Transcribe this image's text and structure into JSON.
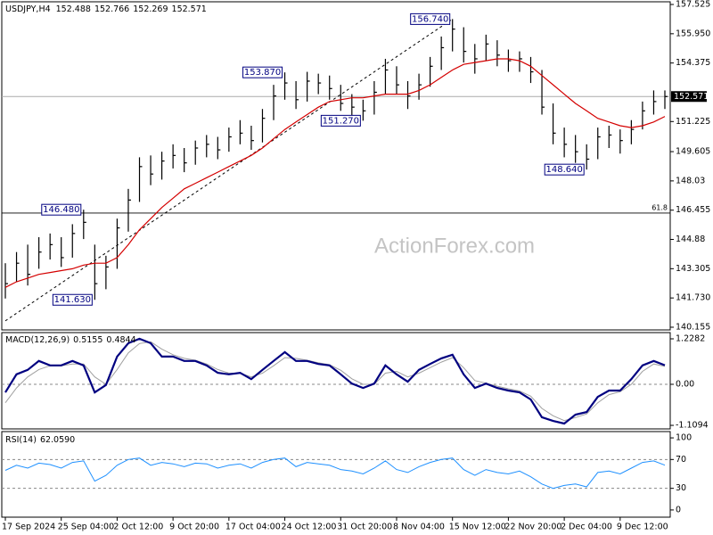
{
  "chart_data": [
    {
      "type": "ohlc",
      "title": "USDJPY,H4",
      "quote": [
        152.488,
        152.766,
        152.269
      ],
      "watermark": "ActionForex.com",
      "categories": [
        "17 Sep 2024",
        null,
        null,
        null,
        null,
        "25 Sep 04:00",
        null,
        null,
        null,
        null,
        "2 Oct 12:00",
        null,
        null,
        null,
        null,
        "9 Oct 20:00",
        null,
        null,
        null,
        null,
        "17 Oct 04:00",
        null,
        null,
        null,
        null,
        "24 Oct 12:00",
        null,
        null,
        null,
        null,
        "31 Oct 20:00",
        null,
        null,
        null,
        null,
        "8 Nov 04:00",
        null,
        null,
        null,
        null,
        "15 Nov 12:00",
        null,
        null,
        null,
        null,
        "22 Nov 20:00",
        null,
        null,
        null,
        null,
        "2 Dec 04:00",
        null,
        null,
        null,
        null,
        "9 Dec 12:00",
        null,
        null,
        null,
        null
      ],
      "high": [
        143.6,
        144.2,
        144.6,
        145.0,
        145.2,
        145.0,
        145.7,
        146.48,
        144.6,
        144.0,
        146.0,
        147.6,
        149.3,
        149.4,
        149.6,
        150.0,
        149.8,
        150.2,
        150.5,
        150.4,
        150.9,
        151.3,
        151.0,
        151.9,
        153.2,
        153.87,
        153.4,
        153.9,
        153.8,
        153.7,
        153.2,
        152.7,
        152.4,
        153.4,
        154.6,
        154.2,
        153.4,
        153.8,
        154.7,
        155.8,
        156.74,
        156.3,
        155.4,
        155.9,
        155.6,
        155.1,
        155.0,
        154.7,
        154.0,
        152.2,
        150.9,
        150.5,
        150.0,
        150.9,
        151.0,
        150.8,
        151.3,
        152.3,
        152.9,
        152.9
      ],
      "low": [
        141.7,
        142.6,
        142.4,
        143.3,
        143.8,
        143.4,
        143.9,
        144.9,
        141.63,
        142.2,
        143.3,
        145.3,
        146.9,
        147.8,
        148.1,
        148.7,
        148.5,
        148.9,
        149.3,
        149.2,
        149.6,
        150.0,
        149.7,
        150.1,
        151.3,
        152.4,
        151.9,
        152.3,
        152.7,
        152.4,
        151.8,
        151.5,
        151.27,
        151.6,
        152.7,
        152.7,
        151.9,
        152.4,
        153.1,
        154.0,
        155.0,
        154.4,
        153.8,
        154.5,
        154.2,
        153.9,
        153.9,
        153.3,
        151.6,
        150.0,
        149.3,
        149.0,
        148.64,
        149.2,
        149.8,
        149.5,
        150.0,
        150.8,
        151.6,
        151.9
      ],
      "close": [
        142.5,
        143.6,
        143.0,
        144.2,
        144.6,
        143.9,
        145.2,
        145.8,
        142.5,
        143.4,
        145.5,
        147.0,
        148.8,
        148.4,
        149.1,
        149.4,
        149.0,
        149.8,
        150.0,
        149.7,
        150.4,
        150.6,
        150.2,
        151.4,
        152.6,
        153.3,
        152.4,
        153.4,
        153.3,
        153.0,
        152.2,
        152.0,
        151.8,
        152.8,
        154.0,
        153.2,
        152.6,
        153.2,
        154.2,
        155.2,
        156.2,
        155.0,
        154.6,
        155.4,
        154.8,
        154.5,
        154.6,
        153.9,
        152.0,
        150.6,
        150.0,
        149.6,
        149.2,
        150.4,
        150.5,
        150.2,
        150.8,
        151.8,
        152.3,
        152.571
      ],
      "color": "#000000",
      "ma": {
        "color": "#d40000",
        "values": [
          142.3,
          142.6,
          142.8,
          143.0,
          143.1,
          143.2,
          143.3,
          143.5,
          143.6,
          143.6,
          143.9,
          144.6,
          145.4,
          146.0,
          146.6,
          147.1,
          147.6,
          147.9,
          148.2,
          148.5,
          148.8,
          149.1,
          149.4,
          149.8,
          150.3,
          150.8,
          151.2,
          151.6,
          152.0,
          152.3,
          152.4,
          152.5,
          152.5,
          152.6,
          152.7,
          152.7,
          152.7,
          152.9,
          153.2,
          153.6,
          154.0,
          154.3,
          154.4,
          154.5,
          154.6,
          154.6,
          154.5,
          154.2,
          153.7,
          153.2,
          152.7,
          152.2,
          151.8,
          151.4,
          151.2,
          151.0,
          150.9,
          151.0,
          151.2,
          151.5
        ]
      },
      "trendline": {
        "x": [
          0,
          40
        ],
        "y": [
          140.5,
          156.74
        ]
      },
      "levels": [
        {
          "value": 146.3,
          "label": "61.8"
        }
      ],
      "annotations": [
        {
          "bar": 40,
          "value": 156.74,
          "label": "156.740"
        },
        {
          "bar": 25,
          "value": 153.87,
          "label": "153.870"
        },
        {
          "bar": 32,
          "value": 151.27,
          "label": "151.270"
        },
        {
          "bar": 52,
          "value": 148.64,
          "label": "148.640"
        },
        {
          "bar": 7,
          "value": 146.48,
          "label": "146.480"
        },
        {
          "bar": 8,
          "value": 141.63,
          "label": "141.630"
        }
      ],
      "ylim": [
        140.01,
        157.67
      ],
      "yticks": [
        157.525,
        {
          "value": 155.95,
          "label": "155.950"
        },
        154.375,
        151.225,
        149.605,
        148.03,
        146.455,
        144.88,
        143.305,
        {
          "value": 141.73,
          "label": "141.730"
        },
        140.155
      ]
    },
    {
      "type": "line",
      "title": "MACD(12,26,9)",
      "series": [
        {
          "color": "#000080",
          "values": [
            -0.22,
            0.27,
            0.39,
            0.63,
            0.51,
            0.51,
            0.63,
            0.51,
            -0.22,
            -0.02,
            0.75,
            1.11,
            1.23,
            1.11,
            0.75,
            0.75,
            0.63,
            0.63,
            0.51,
            0.31,
            0.27,
            0.31,
            0.14,
            0.39,
            0.63,
            0.87,
            0.63,
            0.63,
            0.55,
            0.51,
            0.27,
            0.02,
            -0.1,
            0.02,
            0.51,
            0.27,
            0.07,
            0.39,
            0.55,
            0.7,
            0.8,
            0.27,
            -0.1,
            0.02,
            -0.1,
            -0.17,
            -0.22,
            -0.41,
            -0.89,
            -0.99,
            -1.06,
            -0.82,
            -0.75,
            -0.34,
            -0.17,
            -0.17,
            0.14,
            0.51,
            0.63,
            0.5155
          ]
        },
        {
          "color": "#a0a0a0",
          "values": [
            -0.5,
            -0.1,
            0.2,
            0.4,
            0.5,
            0.5,
            0.55,
            0.55,
            0.2,
            0.0,
            0.4,
            0.85,
            1.1,
            1.15,
            0.95,
            0.8,
            0.7,
            0.65,
            0.55,
            0.4,
            0.3,
            0.3,
            0.2,
            0.3,
            0.5,
            0.72,
            0.7,
            0.65,
            0.58,
            0.53,
            0.38,
            0.15,
            0.0,
            0.0,
            0.3,
            0.35,
            0.2,
            0.3,
            0.45,
            0.6,
            0.72,
            0.45,
            0.1,
            0.03,
            -0.05,
            -0.12,
            -0.18,
            -0.32,
            -0.65,
            -0.85,
            -0.98,
            -0.9,
            -0.8,
            -0.5,
            -0.28,
            -0.2,
            0.0,
            0.35,
            0.55,
            0.4844
          ]
        }
      ],
      "levels": [
        0
      ],
      "ylim": [
        -1.205,
        1.397
      ],
      "yticks": [
        1.2282,
        {
          "value": 0,
          "label": "0.00"
        },
        -1.1094
      ]
    },
    {
      "type": "line",
      "title": "RSI(14)",
      "current_label": "62.0590",
      "series": [
        {
          "color": "#1e90ff",
          "values": [
            55,
            62,
            58,
            65,
            63,
            58,
            66,
            68,
            40,
            48,
            62,
            70,
            72,
            62,
            66,
            64,
            60,
            65,
            64,
            58,
            62,
            64,
            58,
            66,
            70,
            72,
            60,
            66,
            64,
            62,
            56,
            54,
            50,
            58,
            68,
            56,
            52,
            60,
            66,
            70,
            72,
            56,
            48,
            56,
            52,
            50,
            54,
            46,
            36,
            30,
            34,
            36,
            32,
            52,
            54,
            50,
            58,
            66,
            68,
            62.059
          ]
        }
      ],
      "levels": [
        70,
        30
      ],
      "ylim": [
        -10,
        108.75
      ],
      "yticks": [
        100,
        70,
        30,
        0
      ]
    }
  ]
}
